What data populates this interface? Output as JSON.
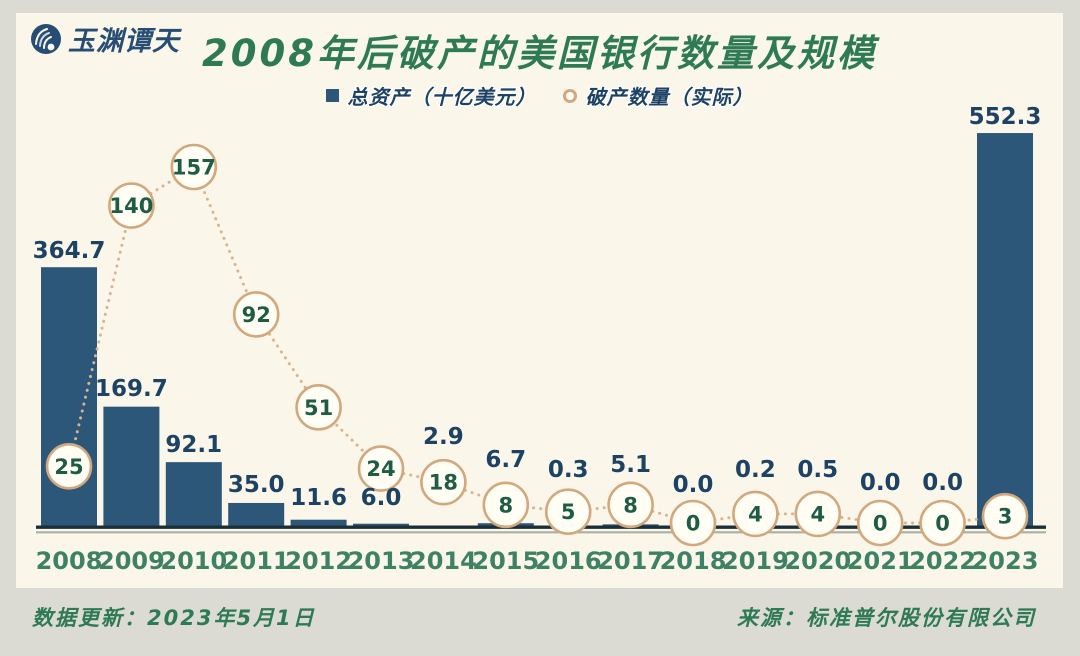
{
  "header": {
    "logo_text": "玉渊谭天",
    "title": "2008年后破产的美国银行数量及规模"
  },
  "legend": {
    "assets_label": "总资产（十亿美元）",
    "count_label": "破产数量（实际）"
  },
  "footer": {
    "updated": "数据更新：2023年5月1日",
    "source": "来源：标准普尔股份有限公司"
  },
  "colors": {
    "background_frame": "#dcdbd3",
    "panel": "#faf7ea",
    "bar": "#2d5778",
    "value_text": "#1d4263",
    "title_green": "#2e7a54",
    "year_green": "#3e8165",
    "count_green": "#1e5c44",
    "circle_border": "#d2a87e",
    "circle_fill": "#fffdf4",
    "dotted_line": "#d9b48c",
    "axis_dark": "#1b2f38",
    "axis_shadow": "#a9b0a0",
    "logo_navy": "#274d74"
  },
  "chart_data": {
    "type": "bar",
    "title": "2008年后破产的美国银行数量及规模",
    "categories": [
      "2008",
      "2009",
      "2010",
      "2011",
      "2012",
      "2013",
      "2014",
      "2015",
      "2016",
      "2017",
      "2018",
      "2019",
      "2020",
      "2021",
      "2022",
      "2023"
    ],
    "series": [
      {
        "name": "总资产（十亿美元）",
        "type": "bar",
        "unit": "十亿美元",
        "values": [
          364.7,
          169.7,
          92.1,
          35.0,
          11.6,
          6.0,
          2.9,
          6.7,
          0.3,
          5.1,
          0.0,
          0.2,
          0.5,
          0.0,
          0.0,
          552.3
        ]
      },
      {
        "name": "破产数量（实际）",
        "type": "scatter",
        "unit": "家",
        "values": [
          25,
          140,
          157,
          92,
          51,
          24,
          18,
          8,
          5,
          8,
          0,
          4,
          4,
          0,
          0,
          3
        ]
      }
    ],
    "legend_position": "top",
    "grid": false,
    "value_labels": "all",
    "xlabel": "",
    "ylabel": ""
  }
}
